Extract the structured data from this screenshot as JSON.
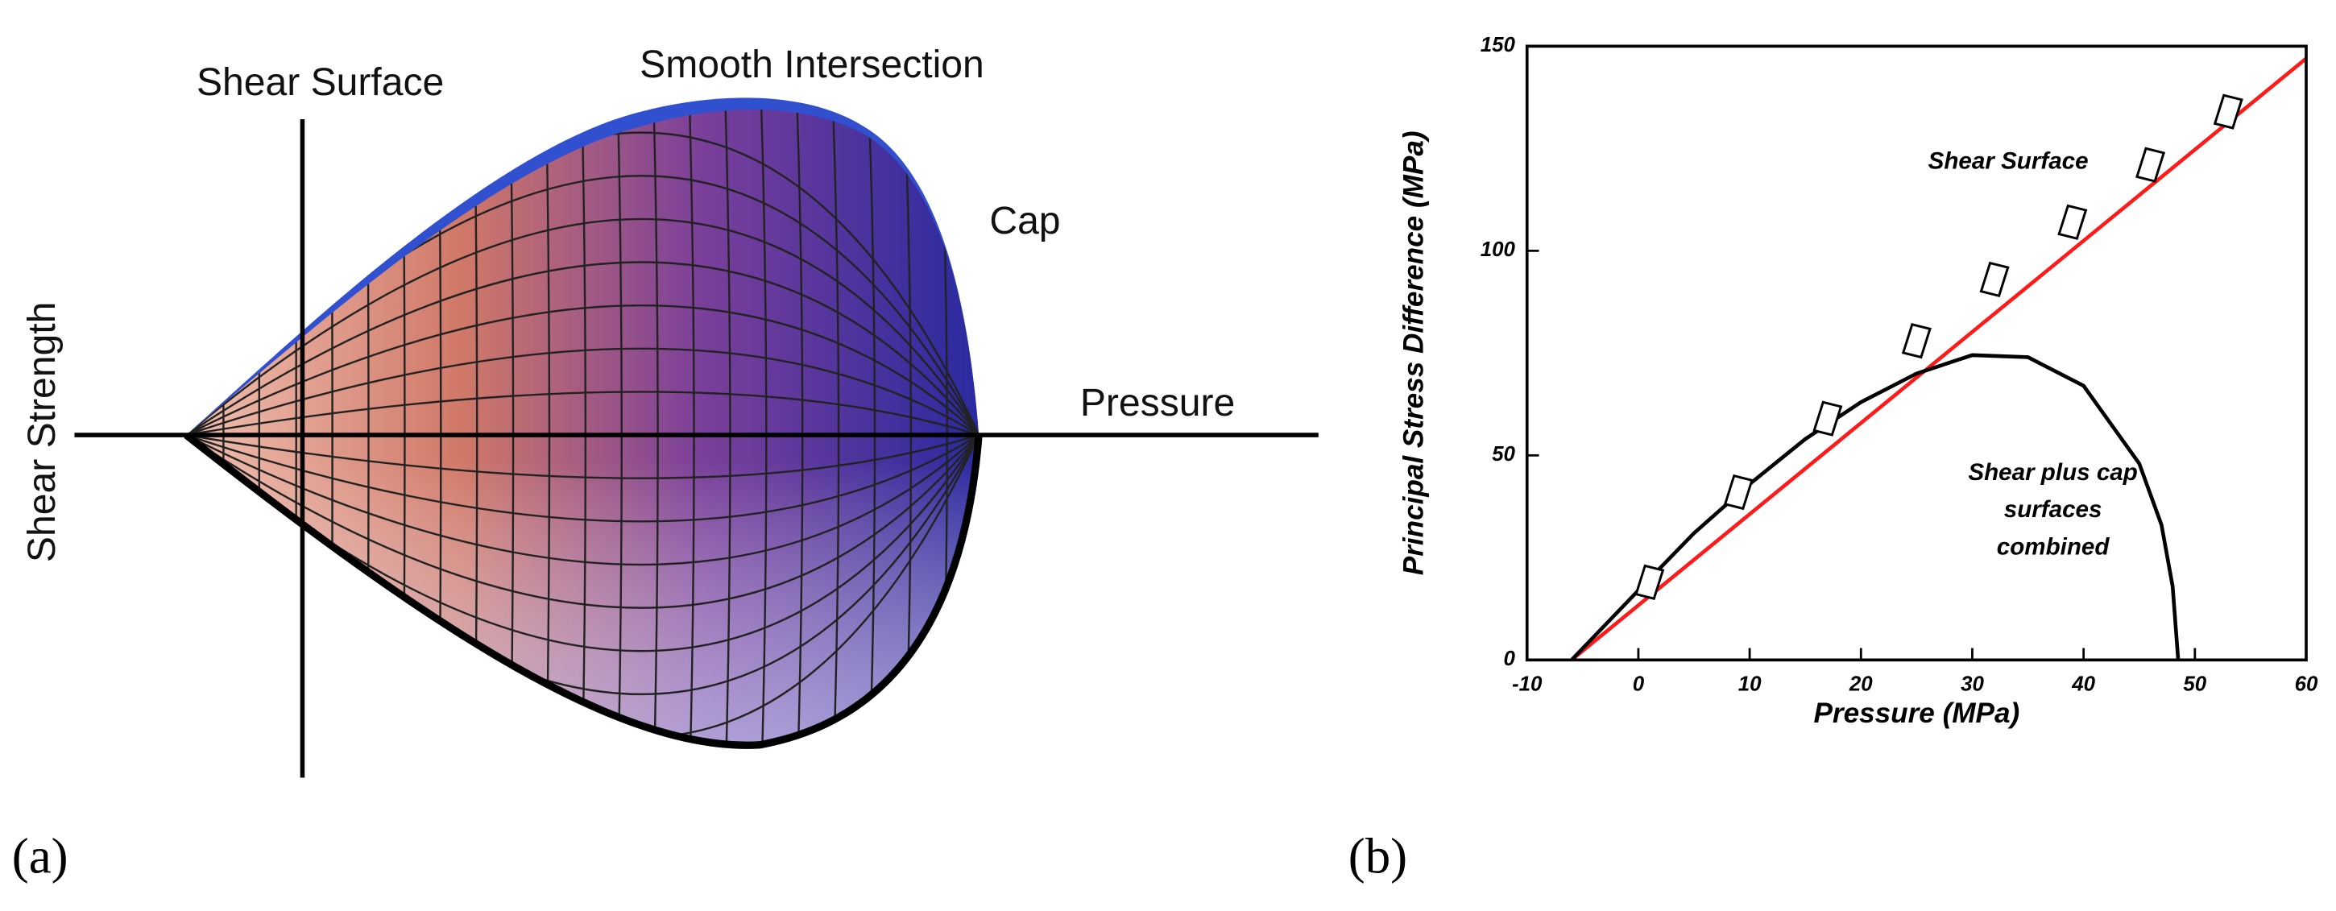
{
  "panel_a": {
    "label": "(a)",
    "shear_surface": "Shear Surface",
    "smooth_intersection": "Smooth Intersection",
    "cap": "Cap",
    "pressure": "Pressure",
    "shear_strength": "Shear Strength"
  },
  "chart_data": {
    "type": "line",
    "panel_label": "(b)",
    "xlabel": "Pressure (MPa)",
    "ylabel": "Principal Stress Difference (MPa)",
    "xlim": [
      -10,
      60
    ],
    "xticks": [
      -10,
      0,
      10,
      20,
      30,
      40,
      50,
      60
    ],
    "ylim": [
      0,
      150
    ],
    "yticks": [
      0,
      50,
      100,
      150
    ],
    "annotations": [
      "Shear Surface",
      "Shear plus cap",
      "surfaces",
      "combined"
    ],
    "series": [
      {
        "color": "#ff1a1a",
        "x": [
          -6,
          60
        ],
        "values": [
          0,
          147
        ]
      },
      {
        "color": "#000000",
        "x": [
          -6,
          0,
          5,
          10,
          15,
          20,
          25,
          30,
          35,
          40,
          45,
          47,
          48,
          48.5
        ],
        "values": [
          0,
          17,
          31,
          43,
          54,
          63,
          70,
          74.5,
          74,
          67,
          48,
          33,
          18,
          0
        ]
      },
      {
        "type": "scatter",
        "color": "#000000",
        "x": [
          1,
          9,
          17,
          25,
          32,
          39,
          46,
          53
        ],
        "values": [
          19,
          41,
          59,
          78,
          93,
          107,
          121,
          134
        ]
      }
    ]
  }
}
